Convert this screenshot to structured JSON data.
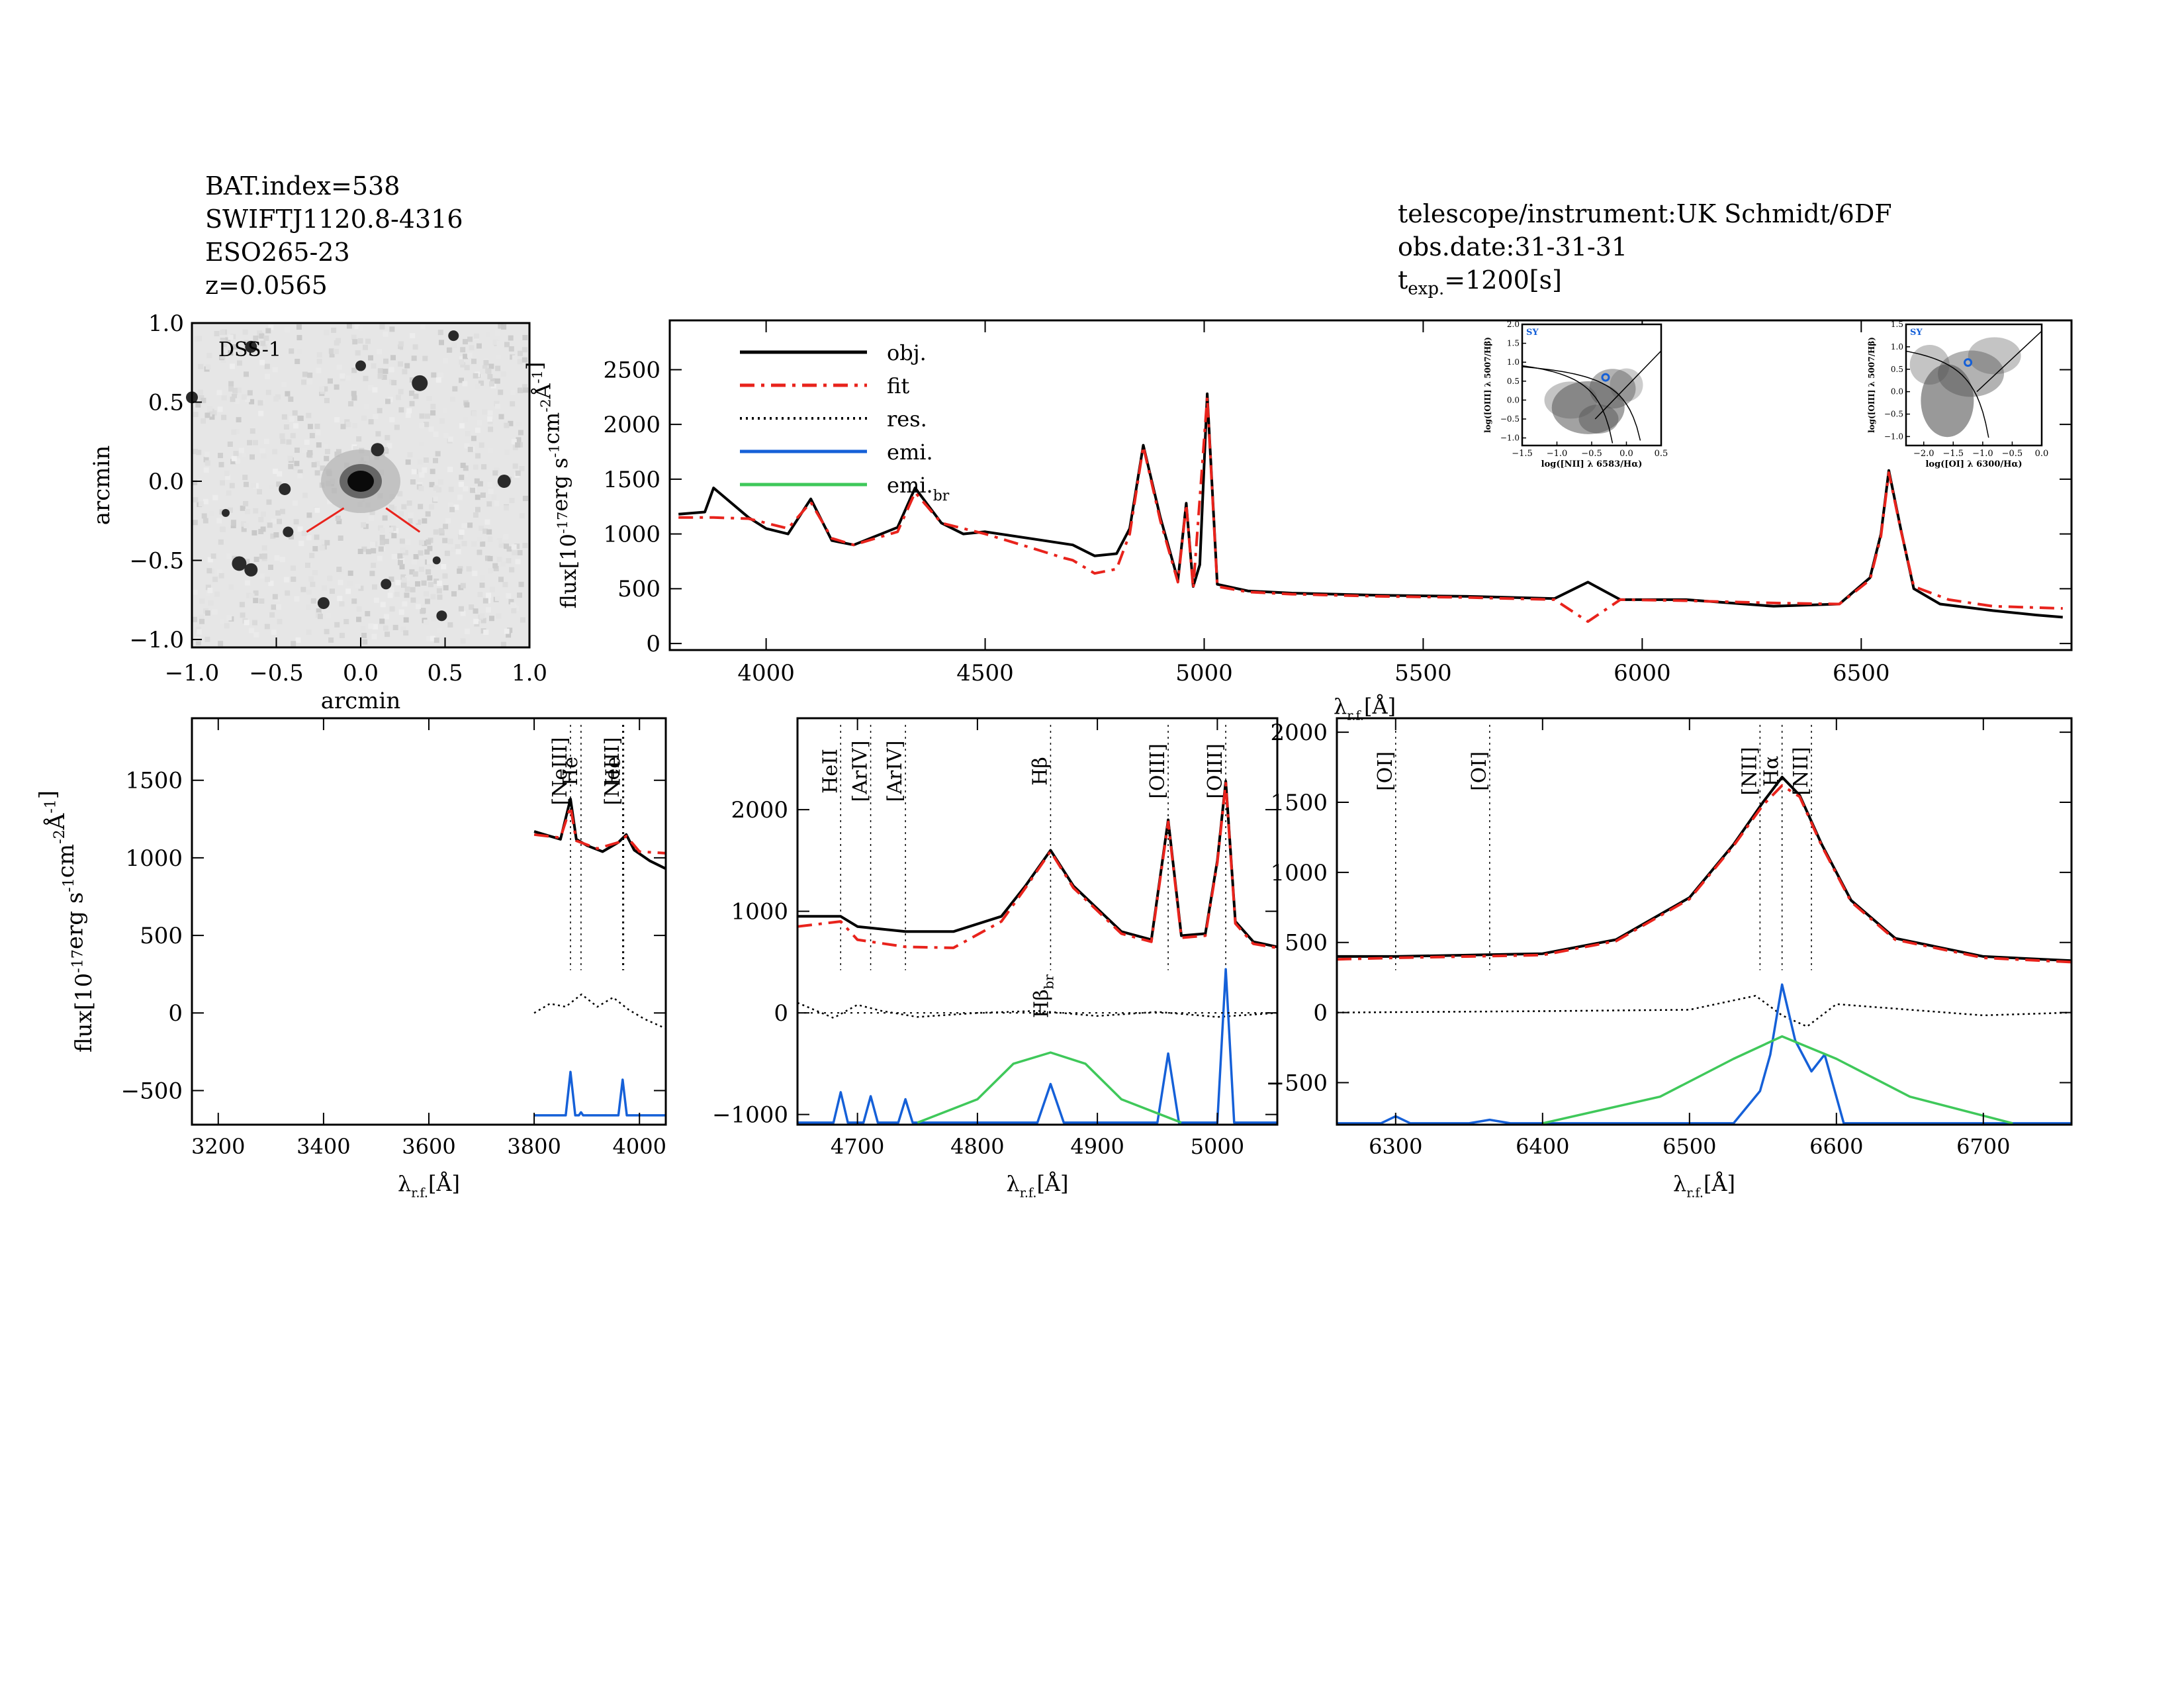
{
  "header_left": {
    "line1": "BAT.index=538",
    "line2": "SWIFTJ1120.8-4316",
    "line3": "ESO265-23",
    "line4": "z=0.0565"
  },
  "header_right": {
    "line1": "telescope/instrument:UK Schmidt/6DF",
    "line2": "obs.date:31-31-31",
    "texp_prefix": "t",
    "texp_sub": "exp.",
    "texp_value": "=1200[s]"
  },
  "image_panel": {
    "label": "DSS-1",
    "xlabel": "arcmin",
    "ylabel": "arcmin",
    "xticks": [
      "-1.0",
      "-0.5",
      "0.0",
      "0.5",
      "1.0"
    ],
    "yticks": [
      "-1.0",
      "-0.5",
      "0.0",
      "0.5",
      "1.0"
    ]
  },
  "colors": {
    "obj": "#000000",
    "fit": "#e8231c",
    "emi": "#1560d8",
    "emi_br": "#3fc85a"
  },
  "axis_text": {
    "flux_main": "flux",
    "flux_units": "[10",
    "flux_exp": "-17",
    "flux_mid": "erg s",
    "flux_mid_exp": "-1",
    "flux_cm": "cm",
    "flux_cm_exp": "-2",
    "flux_ang": "Å",
    "flux_ang_exp": "-1",
    "flux_close": "]",
    "lambda": "λ",
    "lambda_sub": "r.f.",
    "lambda_unit": "[Å]"
  },
  "chart_data": [
    {
      "id": "main_spectrum",
      "type": "line",
      "xlim": [
        3780,
        6980
      ],
      "ylim": [
        -60,
        2950
      ],
      "xticks": [
        4000,
        4500,
        5000,
        5500,
        6000,
        6500
      ],
      "yticks": [
        0,
        500,
        1000,
        1500,
        2000,
        2500
      ],
      "legend": {
        "position": "top-left",
        "entries": [
          "obj.",
          "fit",
          "res.",
          "emi.",
          "emi."
        ],
        "br_sub": "br"
      },
      "series": [
        {
          "name": "obj.",
          "x": [
            3800,
            3860,
            3880,
            3960,
            4000,
            4050,
            4102,
            4150,
            4200,
            4300,
            4340,
            4400,
            4450,
            4500,
            4600,
            4700,
            4750,
            4800,
            4830,
            4861,
            4900,
            4940,
            4959,
            4975,
            4990,
            5007,
            5030,
            5100,
            5200,
            5400,
            5600,
            5800,
            5876,
            5950,
            6100,
            6300,
            6450,
            6520,
            6545,
            6563,
            6590,
            6620,
            6680,
            6800,
            6900,
            6960
          ],
          "y": [
            1180,
            1200,
            1420,
            1150,
            1050,
            1000,
            1320,
            940,
            900,
            1060,
            1420,
            1100,
            1000,
            1020,
            960,
            900,
            800,
            820,
            1050,
            1810,
            1150,
            580,
            1280,
            520,
            720,
            2280,
            540,
            480,
            460,
            440,
            430,
            410,
            560,
            400,
            400,
            340,
            360,
            600,
            1000,
            1580,
            1050,
            500,
            360,
            300,
            260,
            240
          ]
        },
        {
          "name": "fit",
          "x": [
            3800,
            3880,
            3960,
            4050,
            4102,
            4150,
            4200,
            4300,
            4340,
            4400,
            4500,
            4600,
            4680,
            4700,
            4750,
            4800,
            4830,
            4861,
            4900,
            4940,
            4959,
            4975,
            5007,
            5030,
            5100,
            5200,
            5400,
            5600,
            5800,
            5876,
            5950,
            6100,
            6300,
            6450,
            6520,
            6545,
            6563,
            6590,
            6620,
            6700,
            6800,
            6960
          ],
          "y": [
            1150,
            1150,
            1140,
            1050,
            1290,
            960,
            900,
            1020,
            1380,
            1100,
            1000,
            880,
            780,
            760,
            640,
            680,
            1000,
            1800,
            1120,
            560,
            1270,
            500,
            2250,
            520,
            470,
            450,
            430,
            420,
            400,
            200,
            400,
            390,
            370,
            360,
            580,
            980,
            1560,
            1040,
            520,
            400,
            340,
            320
          ]
        }
      ]
    },
    {
      "id": "bpt_nii",
      "type": "scatter",
      "label": "SY",
      "xlabel": "log([NII] λ 6583/Hα)",
      "ylabel": "log([OIII] λ 5007/Hβ)",
      "xlim": [
        -1.5,
        0.5
      ],
      "ylim": [
        -1.2,
        2.0
      ],
      "xticks": [
        "-1.5",
        "-1.0",
        "-0.5",
        "0.0",
        "0.5"
      ],
      "yticks": [
        "-1.0",
        "-0.5",
        "0.0",
        "0.5",
        "1.0",
        "1.5",
        "2.0"
      ],
      "point": {
        "x": -0.3,
        "y": 0.6
      }
    },
    {
      "id": "bpt_oi",
      "type": "scatter",
      "label": "SY",
      "xlabel": "log([OI] λ 6300/Hα)",
      "ylabel": "log([OIII] λ 5007/Hβ)",
      "xlim": [
        -2.3,
        0.0
      ],
      "ylim": [
        -1.2,
        1.5
      ],
      "xticks": [
        "-2.0",
        "-1.5",
        "-1.0",
        "-0.5",
        "0.0"
      ],
      "yticks": [
        "-1.0",
        "-0.5",
        "0.0",
        "0.5",
        "1.0",
        "1.5"
      ],
      "point": {
        "x": -1.25,
        "y": 0.65
      }
    },
    {
      "id": "panel_blue",
      "type": "line",
      "xlim": [
        3150,
        4050
      ],
      "ylim": [
        -720,
        1900
      ],
      "xticks": [
        3200,
        3400,
        3600,
        3800,
        4000
      ],
      "yticks": [
        -500,
        0,
        500,
        1000,
        1500
      ],
      "lines": [
        {
          "label": "[NeIII]",
          "x": 3869
        },
        {
          "label": "He",
          "x": 3889
        },
        {
          "label": "[NeIII]",
          "x": 3968
        },
        {
          "label": "He",
          "x": 3970
        }
      ],
      "series": [
        {
          "name": "obj.",
          "x": [
            3800,
            3820,
            3850,
            3869,
            3880,
            3900,
            3930,
            3960,
            3975,
            3990,
            4020,
            4050
          ],
          "y": [
            1170,
            1150,
            1120,
            1380,
            1120,
            1080,
            1040,
            1100,
            1150,
            1050,
            980,
            930
          ]
        },
        {
          "name": "fit",
          "x": [
            3800,
            3850,
            3869,
            3880,
            3920,
            3960,
            3975,
            4000,
            4050
          ],
          "y": [
            1150,
            1130,
            1330,
            1110,
            1060,
            1100,
            1140,
            1040,
            1030
          ]
        },
        {
          "name": "res.",
          "x": [
            3800,
            3830,
            3860,
            3890,
            3920,
            3950,
            3980,
            4010,
            4050
          ],
          "y": [
            0,
            60,
            40,
            120,
            40,
            100,
            20,
            -40,
            -100
          ]
        },
        {
          "name": "emi.",
          "x": [
            3800,
            3860,
            3869,
            3878,
            3885,
            3889,
            3893,
            3960,
            3968,
            3976,
            4050
          ],
          "y": [
            -660,
            -660,
            -380,
            -660,
            -660,
            -640,
            -660,
            -660,
            -430,
            -660,
            -660
          ]
        }
      ]
    },
    {
      "id": "panel_hbeta",
      "type": "line",
      "xlim": [
        4650,
        5050
      ],
      "ylim": [
        -1100,
        2900
      ],
      "xticks": [
        4700,
        4800,
        4900,
        5000
      ],
      "yticks": [
        -1000,
        0,
        1000,
        2000
      ],
      "lines": [
        {
          "label": "HeII",
          "x": 4686
        },
        {
          "label": "[ArIV]",
          "x": 4711
        },
        {
          "label": "[ArIV]",
          "x": 4740
        },
        {
          "label": "Hβ",
          "x": 4861
        },
        {
          "label": "[OIII]",
          "x": 4959
        },
        {
          "label": "[OIII]",
          "x": 5007
        }
      ],
      "broad_label": "Hβ",
      "broad_sub": "br",
      "series": [
        {
          "name": "obj.",
          "x": [
            4650,
            4686,
            4700,
            4740,
            4780,
            4820,
            4840,
            4861,
            4880,
            4920,
            4945,
            4959,
            4970,
            4990,
            5000,
            5007,
            5015,
            5030,
            5050
          ],
          "y": [
            950,
            950,
            850,
            800,
            800,
            950,
            1250,
            1600,
            1250,
            800,
            720,
            1900,
            760,
            780,
            1500,
            2280,
            900,
            700,
            650
          ]
        },
        {
          "name": "fit",
          "x": [
            4650,
            4686,
            4700,
            4740,
            4780,
            4820,
            4840,
            4861,
            4880,
            4920,
            4945,
            4959,
            4970,
            4990,
            5000,
            5007,
            5015,
            5030,
            5050
          ],
          "y": [
            850,
            900,
            720,
            650,
            640,
            900,
            1230,
            1590,
            1230,
            780,
            700,
            1880,
            740,
            760,
            1480,
            2260,
            880,
            680,
            640
          ]
        },
        {
          "name": "res.",
          "x": [
            4650,
            4680,
            4700,
            4720,
            4750,
            4800,
            4850,
            4900,
            4950,
            5000,
            5050
          ],
          "y": [
            100,
            -50,
            80,
            20,
            -40,
            0,
            20,
            -30,
            10,
            -40,
            0
          ]
        },
        {
          "name": "emi.",
          "x": [
            4650,
            4680,
            4686,
            4692,
            4705,
            4711,
            4717,
            4734,
            4740,
            4746,
            4850,
            4861,
            4872,
            4950,
            4959,
            4968,
            5000,
            5007,
            5014,
            5050
          ],
          "y": [
            -1080,
            -1080,
            -780,
            -1080,
            -1080,
            -820,
            -1080,
            -1080,
            -850,
            -1080,
            -1080,
            -700,
            -1080,
            -1080,
            -400,
            -1080,
            -1080,
            430,
            -1080,
            -1080
          ]
        },
        {
          "name": "emi.br",
          "x": [
            4750,
            4800,
            4830,
            4861,
            4890,
            4920,
            4970
          ],
          "y": [
            -1080,
            -850,
            -500,
            -390,
            -500,
            -850,
            -1080
          ]
        }
      ]
    },
    {
      "id": "panel_halpha",
      "type": "line",
      "xlim": [
        6260,
        6760
      ],
      "ylim": [
        -800,
        2100
      ],
      "xticks": [
        6300,
        6400,
        6500,
        6600,
        6700
      ],
      "yticks": [
        -500,
        0,
        500,
        1000,
        1500,
        2000
      ],
      "lines": [
        {
          "label": "[OI]",
          "x": 6300
        },
        {
          "label": "[OI]",
          "x": 6364
        },
        {
          "label": "[NII]",
          "x": 6548
        },
        {
          "label": "Hα",
          "x": 6563
        },
        {
          "label": "[NII]",
          "x": 6583
        }
      ],
      "series": [
        {
          "name": "obj.",
          "x": [
            6260,
            6300,
            6400,
            6450,
            6500,
            6530,
            6550,
            6563,
            6575,
            6590,
            6610,
            6640,
            6700,
            6760
          ],
          "y": [
            400,
            400,
            420,
            520,
            820,
            1200,
            1500,
            1680,
            1550,
            1200,
            800,
            530,
            400,
            370
          ]
        },
        {
          "name": "fit",
          "x": [
            6260,
            6300,
            6400,
            6450,
            6500,
            6530,
            6550,
            6563,
            6575,
            6590,
            6610,
            6640,
            6700,
            6760
          ],
          "y": [
            380,
            390,
            410,
            510,
            810,
            1190,
            1480,
            1620,
            1540,
            1190,
            790,
            520,
            390,
            360
          ]
        },
        {
          "name": "res.",
          "x": [
            6260,
            6400,
            6500,
            6545,
            6563,
            6580,
            6600,
            6700,
            6760
          ],
          "y": [
            0,
            10,
            20,
            120,
            -20,
            -100,
            60,
            -20,
            0
          ]
        },
        {
          "name": "emi.",
          "x": [
            6260,
            6290,
            6300,
            6310,
            6350,
            6364,
            6378,
            6530,
            6548,
            6555,
            6563,
            6572,
            6583,
            6592,
            6605,
            6760
          ],
          "y": [
            -790,
            -790,
            -740,
            -790,
            -790,
            -765,
            -790,
            -790,
            -560,
            -300,
            200,
            -200,
            -420,
            -300,
            -790,
            -790
          ]
        },
        {
          "name": "emi.br",
          "x": [
            6400,
            6480,
            6530,
            6563,
            6600,
            6650,
            6720
          ],
          "y": [
            -790,
            -600,
            -330,
            -170,
            -330,
            -600,
            -790
          ]
        }
      ]
    }
  ]
}
